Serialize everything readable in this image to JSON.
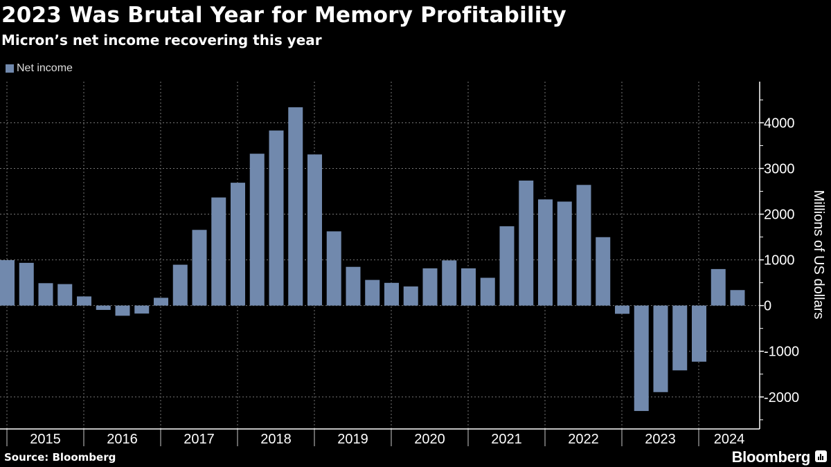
{
  "header": {
    "title": "2023 Was Brutal Year for Memory Profitability",
    "subtitle": "Micron’s net income recovering this year"
  },
  "footer": {
    "source": "Source: Bloomberg",
    "brand": "Bloomberg",
    "brand_icon": "bloomberg-chart-icon"
  },
  "colors": {
    "bar": "#7189ad",
    "background": "#000000",
    "grid": "#777777",
    "axis": "#ffffff"
  },
  "chart_data": {
    "type": "bar",
    "title": "2023 Was Brutal Year for Memory Profitability",
    "subtitle": "Micron’s net income recovering this year",
    "legend": [
      {
        "name": "Net income",
        "color": "#7189ad"
      }
    ],
    "legend_placement": "top-left",
    "xlabel": "",
    "ylabel": "Millions of US dollars",
    "ylim": [
      -2700,
      4900
    ],
    "y_ticks": [
      -2000,
      -1000,
      0,
      1000,
      2000,
      3000,
      4000
    ],
    "grid": true,
    "x_tick_labels": [
      "2015",
      "2016",
      "2017",
      "2018",
      "2019",
      "2020",
      "2021",
      "2022",
      "2023",
      "2024"
    ],
    "quarters_per_year": 4,
    "series": [
      {
        "name": "Net income",
        "values": [
          994,
          935,
          490,
          470,
          200,
          -95,
          -223,
          -175,
          170,
          894,
          1656,
          2365,
          2688,
          3323,
          3831,
          4339,
          3307,
          1624,
          847,
          561,
          497,
          418,
          815,
          989,
          815,
          608,
          1735,
          2735,
          2323,
          2275,
          2640,
          1497,
          -180,
          -2307,
          -1894,
          -1418,
          -1228,
          799,
          339
        ]
      }
    ]
  }
}
